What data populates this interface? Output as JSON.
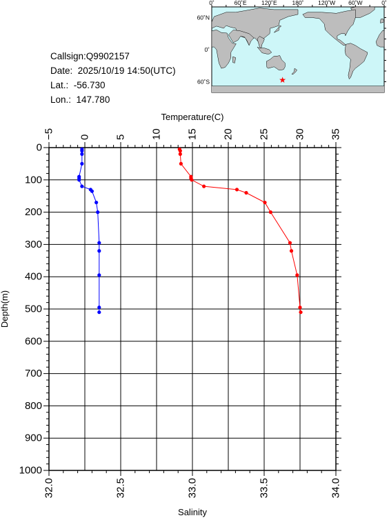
{
  "info": {
    "callsign": "Callsign:Q9902157",
    "date": "Date:  2025/10/19 14:50(UTC)",
    "lat": "Lat.:  -56.730",
    "lon": "Lon.:  147.780"
  },
  "map": {
    "top_labels": [
      "0˚",
      "60˚E",
      "120˚E",
      "180˚",
      "120˚W",
      "60˚W",
      "0˚"
    ],
    "side_labels": [
      "60˚N",
      "0˚",
      "60˚S"
    ],
    "ocean_color": "#cdf6f8",
    "land_color": "#bdbdbd",
    "marker_color": "#ff0000",
    "marker_lat": -56.73,
    "marker_lon": 147.78
  },
  "chart_data": {
    "type": "line",
    "ylabel": "Depth(m)",
    "y_range": [
      0,
      1000
    ],
    "y_ticks": [
      "0",
      "100",
      "200",
      "300",
      "400",
      "500",
      "600",
      "700",
      "800",
      "900",
      "1000"
    ],
    "temperature_axis": {
      "title": "Temperature(C)",
      "range": [
        -5,
        35
      ],
      "ticks": [
        "−5",
        "0",
        "5",
        "10",
        "15",
        "20",
        "25",
        "30",
        "35"
      ],
      "color": "#ff0000"
    },
    "salinity_axis": {
      "title": "Salinity",
      "range": [
        32.0,
        34.0
      ],
      "ticks": [
        "32.0",
        "32.5",
        "33.0",
        "33.5",
        "34.0"
      ],
      "color": "#0000ff"
    },
    "temperature": {
      "depth": [
        5,
        10,
        20,
        50,
        90,
        95,
        100,
        120,
        130,
        140,
        170,
        200,
        295,
        320,
        395,
        495,
        510
      ],
      "values": [
        13.2,
        13.3,
        13.3,
        13.4,
        14.8,
        14.8,
        14.9,
        16.6,
        21.2,
        22.5,
        25.1,
        25.9,
        28.6,
        28.8,
        29.6,
        30.0,
        30.1
      ]
    },
    "salinity": {
      "depth": [
        5,
        10,
        20,
        50,
        90,
        95,
        100,
        120,
        130,
        135,
        170,
        200,
        295,
        320,
        395,
        495,
        510
      ],
      "values": [
        32.23,
        32.23,
        32.23,
        32.23,
        32.21,
        32.21,
        32.21,
        32.23,
        32.29,
        32.3,
        32.33,
        32.34,
        32.35,
        32.35,
        32.35,
        32.35,
        32.35
      ]
    }
  }
}
